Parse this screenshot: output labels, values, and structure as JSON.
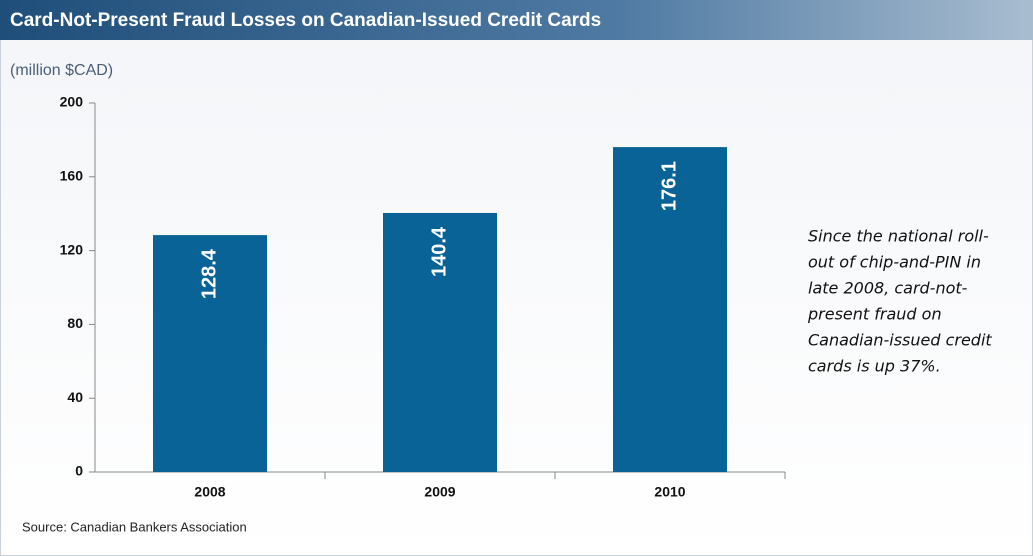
{
  "chart_data": {
    "type": "bar",
    "title": "Card-Not-Present Fraud Losses on Canadian-Issued Credit Cards",
    "subtitle": "(million $CAD)",
    "categories": [
      "2008",
      "2009",
      "2010"
    ],
    "values": [
      128.4,
      140.4,
      176.1
    ],
    "color": "#0a6396",
    "ylim": [
      0,
      200
    ],
    "yticks": [
      0,
      40,
      80,
      120,
      160,
      200
    ],
    "grid": false,
    "annotation": [
      "Since the national roll-",
      "out of chip-and-PIN in",
      "late 2008, card-not-",
      "present fraud on",
      "Canadian-issued credit",
      "cards is up 37%."
    ],
    "source": "Source: Canadian Bankers Association"
  }
}
